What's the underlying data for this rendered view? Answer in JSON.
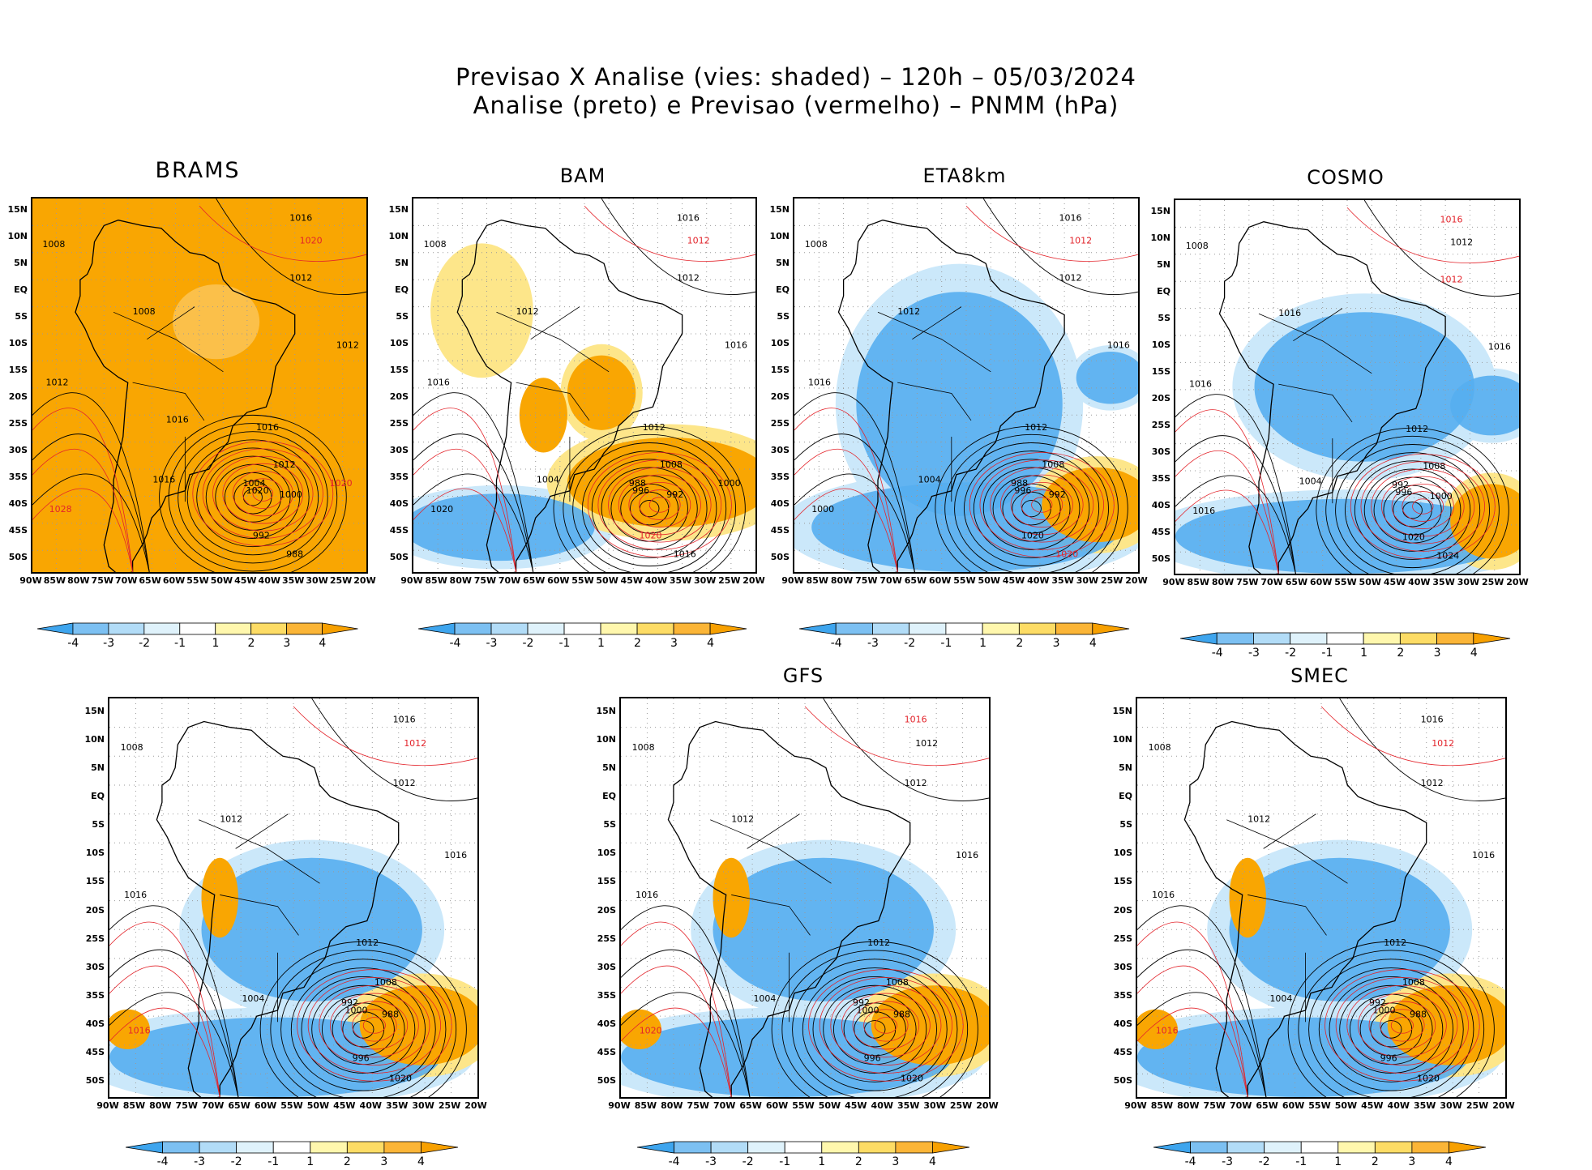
{
  "title": {
    "line1": "Previsao X Analise (vies: shaded) – 120h – 05/03/2024",
    "line2": "Analise (preto) e Previsao (vermelho) – PNMM (hPa)"
  },
  "lat_labels": [
    "15N",
    "10N",
    "5N",
    "EQ",
    "5S",
    "10S",
    "15S",
    "20S",
    "25S",
    "30S",
    "35S",
    "40S",
    "45S",
    "50S"
  ],
  "lon_labels": [
    "90W",
    "85W",
    "80W",
    "75W",
    "70W",
    "65W",
    "60W",
    "55W",
    "50W",
    "45W",
    "40W",
    "35W",
    "30W",
    "25W",
    "20W"
  ],
  "colorbar": {
    "ticks": [
      "-4",
      "-3",
      "-2",
      "-1",
      "1",
      "2",
      "3",
      "4"
    ],
    "colors": [
      "#3ea5ee",
      "#7cc0f2",
      "#b2dcf7",
      "#dff2fb",
      "#ffffff",
      "#fff7ad",
      "#fddc65",
      "#fbb537",
      "#f7a000"
    ]
  },
  "colors": {
    "analysis": "#000000",
    "forecast": "#e3242b",
    "warm": "#f9a602",
    "warm_light": "#fde68a",
    "cold": "#56aef0",
    "cold_light": "#cbe8fa"
  },
  "panels": [
    {
      "name": "BRAMS",
      "labels": [
        "1016",
        "1020",
        "1008",
        "1012",
        "1008",
        "1012",
        "1012",
        "1016",
        "1012",
        "1016",
        "1020",
        "1004",
        "1000",
        "992",
        "988",
        "1028",
        "1020",
        "1016"
      ],
      "label_colors": [
        "k",
        "r",
        "k",
        "k",
        "k",
        "k",
        "k",
        "k",
        "k",
        "k",
        "k",
        "k",
        "k",
        "k",
        "k",
        "r",
        "r",
        "k"
      ]
    },
    {
      "name": "BAM",
      "labels": [
        "1016",
        "1012",
        "1008",
        "1012",
        "1012",
        "1016",
        "1016",
        "1012",
        "1008",
        "1004",
        "996",
        "988",
        "992",
        "1020",
        "1016",
        "1020",
        "1000"
      ],
      "label_colors": [
        "k",
        "r",
        "k",
        "k",
        "k",
        "k",
        "k",
        "k",
        "k",
        "k",
        "k",
        "k",
        "k",
        "r",
        "k",
        "k",
        "k"
      ]
    },
    {
      "name": "ETA8km",
      "labels": [
        "1016",
        "1012",
        "1008",
        "1012",
        "1012",
        "1016",
        "1016",
        "1012",
        "1008",
        "1004",
        "996",
        "988",
        "992",
        "1020",
        "1020",
        "1000"
      ],
      "label_colors": [
        "k",
        "r",
        "k",
        "k",
        "k",
        "k",
        "k",
        "k",
        "k",
        "k",
        "k",
        "k",
        "k",
        "k",
        "r",
        "k"
      ]
    },
    {
      "name": "COSMO",
      "labels": [
        "1016",
        "1012",
        "1008",
        "1012",
        "1016",
        "1016",
        "1016",
        "1012",
        "1008",
        "1004",
        "996",
        "992",
        "1000",
        "1020",
        "1024",
        "1016"
      ],
      "label_colors": [
        "r",
        "k",
        "k",
        "r",
        "k",
        "k",
        "k",
        "k",
        "k",
        "k",
        "k",
        "k",
        "k",
        "k",
        "k",
        "k"
      ]
    },
    {
      "name": "",
      "labels": [
        "1016",
        "1012",
        "1008",
        "1012",
        "1012",
        "1016",
        "1016",
        "1012",
        "1008",
        "1004",
        "1000",
        "992",
        "988",
        "996",
        "1020",
        "1016"
      ],
      "label_colors": [
        "k",
        "r",
        "k",
        "k",
        "k",
        "k",
        "k",
        "k",
        "k",
        "k",
        "k",
        "k",
        "k",
        "k",
        "k",
        "r"
      ]
    },
    {
      "name": "GFS",
      "labels": [
        "1016",
        "1012",
        "1008",
        "1012",
        "1012",
        "1016",
        "1016",
        "1012",
        "1008",
        "1004",
        "1000",
        "992",
        "988",
        "996",
        "1020",
        "1020"
      ],
      "label_colors": [
        "r",
        "k",
        "k",
        "k",
        "k",
        "k",
        "k",
        "k",
        "k",
        "k",
        "k",
        "k",
        "k",
        "k",
        "k",
        "r"
      ]
    },
    {
      "name": "SMEC",
      "labels": [
        "1016",
        "1012",
        "1008",
        "1012",
        "1012",
        "1016",
        "1016",
        "1012",
        "1008",
        "1004",
        "1000",
        "992",
        "988",
        "996",
        "1020",
        "1016"
      ],
      "label_colors": [
        "k",
        "r",
        "k",
        "k",
        "k",
        "k",
        "k",
        "k",
        "k",
        "k",
        "k",
        "k",
        "k",
        "k",
        "k",
        "r"
      ]
    }
  ]
}
